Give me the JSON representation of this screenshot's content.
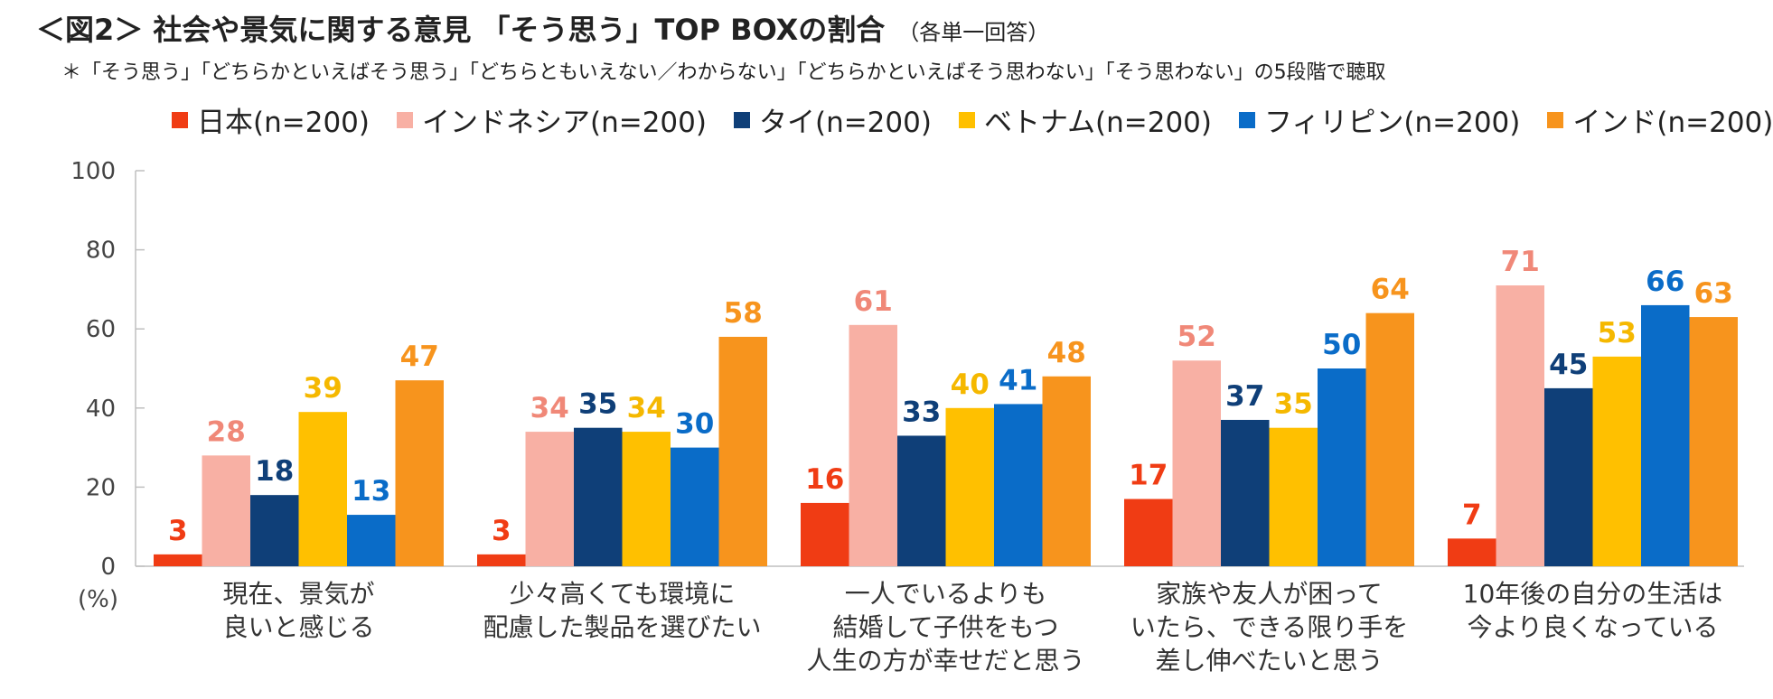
{
  "title": "＜図2＞ 社会や景気に関する意見 「そう思う」TOP BOXの割合",
  "subtitle": "（各単一回答）",
  "note": "＊「そう思う」「どちらかといえばそう思う」「どちらともいえない／わからない」「どちらかといえばそう思わない」「そう思わない」の5段階で聴取",
  "chart_data": {
    "type": "bar",
    "categories": [
      [
        "現在、景気が",
        "良いと感じる"
      ],
      [
        "少々高くても環境に",
        "配慮した製品を選びたい"
      ],
      [
        "一人でいるよりも",
        "結婚して子供をもつ",
        "人生の方が幸せだと思う"
      ],
      [
        "家族や友人が困って",
        "いたら、できる限り手を",
        "差し伸べたいと思う"
      ],
      [
        "10年後の自分の生活は",
        "今より良くなっている"
      ]
    ],
    "series": [
      {
        "name": "日本(n=200)",
        "color": "#F03C14",
        "values": [
          3,
          3,
          16,
          17,
          7
        ]
      },
      {
        "name": "インドネシア(n=200)",
        "color": "#F8B0A4",
        "values": [
          28,
          34,
          61,
          52,
          71
        ]
      },
      {
        "name": "タイ(n=200)",
        "color": "#0F3F78",
        "values": [
          18,
          35,
          33,
          37,
          45
        ]
      },
      {
        "name": "ベトナム(n=200)",
        "color": "#FFC000",
        "values": [
          39,
          34,
          40,
          35,
          53
        ]
      },
      {
        "name": "フィリピン(n=200)",
        "color": "#0A6CC8",
        "values": [
          13,
          30,
          41,
          50,
          66
        ]
      },
      {
        "name": "インド(n=200)",
        "color": "#F7941D",
        "values": [
          47,
          58,
          48,
          64,
          63
        ]
      }
    ],
    "label_colors": [
      "#F03C14",
      "#F08878",
      "#0F3F78",
      "#F5B800",
      "#0A6CC8",
      "#F7941D"
    ],
    "y_ticks": [
      "0",
      "20",
      "40",
      "60",
      "80",
      "100"
    ],
    "ylim": [
      0,
      100
    ],
    "y_unit": "(%)",
    "legend_position": "top"
  }
}
